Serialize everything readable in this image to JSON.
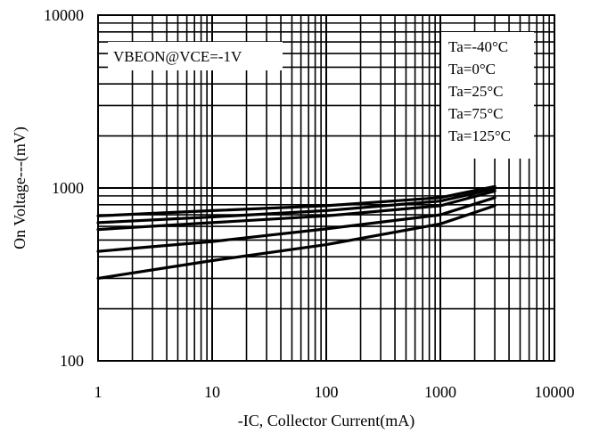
{
  "chart_data": {
    "type": "line",
    "title": "",
    "xlabel": "-IC, Collector Current(mA)",
    "ylabel": "On Voltage---(mV)",
    "x_scale": "log",
    "y_scale": "log",
    "xlim": [
      1,
      10000
    ],
    "ylim": [
      100,
      10000
    ],
    "x_ticks": [
      "1",
      "10",
      "100",
      "1000",
      "10000"
    ],
    "y_ticks": [
      "100",
      "1000",
      "10000"
    ],
    "grid": true,
    "annotation": "VBEON@VCE=-1V",
    "legend_position": "top-right",
    "series": [
      {
        "name": "Ta=-40°C",
        "x": [
          1,
          10,
          100,
          1000,
          3000
        ],
        "y": [
          690,
          740,
          790,
          880,
          1020
        ]
      },
      {
        "name": "Ta=0°C",
        "x": [
          1,
          10,
          100,
          1000,
          3000
        ],
        "y": [
          630,
          680,
          740,
          840,
          990
        ]
      },
      {
        "name": "Ta=25°C",
        "x": [
          1,
          10,
          100,
          1000,
          3000
        ],
        "y": [
          575,
          630,
          690,
          790,
          960
        ]
      },
      {
        "name": "Ta=75°C",
        "x": [
          1,
          10,
          100,
          1000,
          3000
        ],
        "y": [
          430,
          490,
          580,
          700,
          880
        ]
      },
      {
        "name": "Ta=125°C",
        "x": [
          1,
          10,
          100,
          1000,
          3000
        ],
        "y": [
          300,
          380,
          470,
          620,
          790
        ]
      }
    ]
  }
}
